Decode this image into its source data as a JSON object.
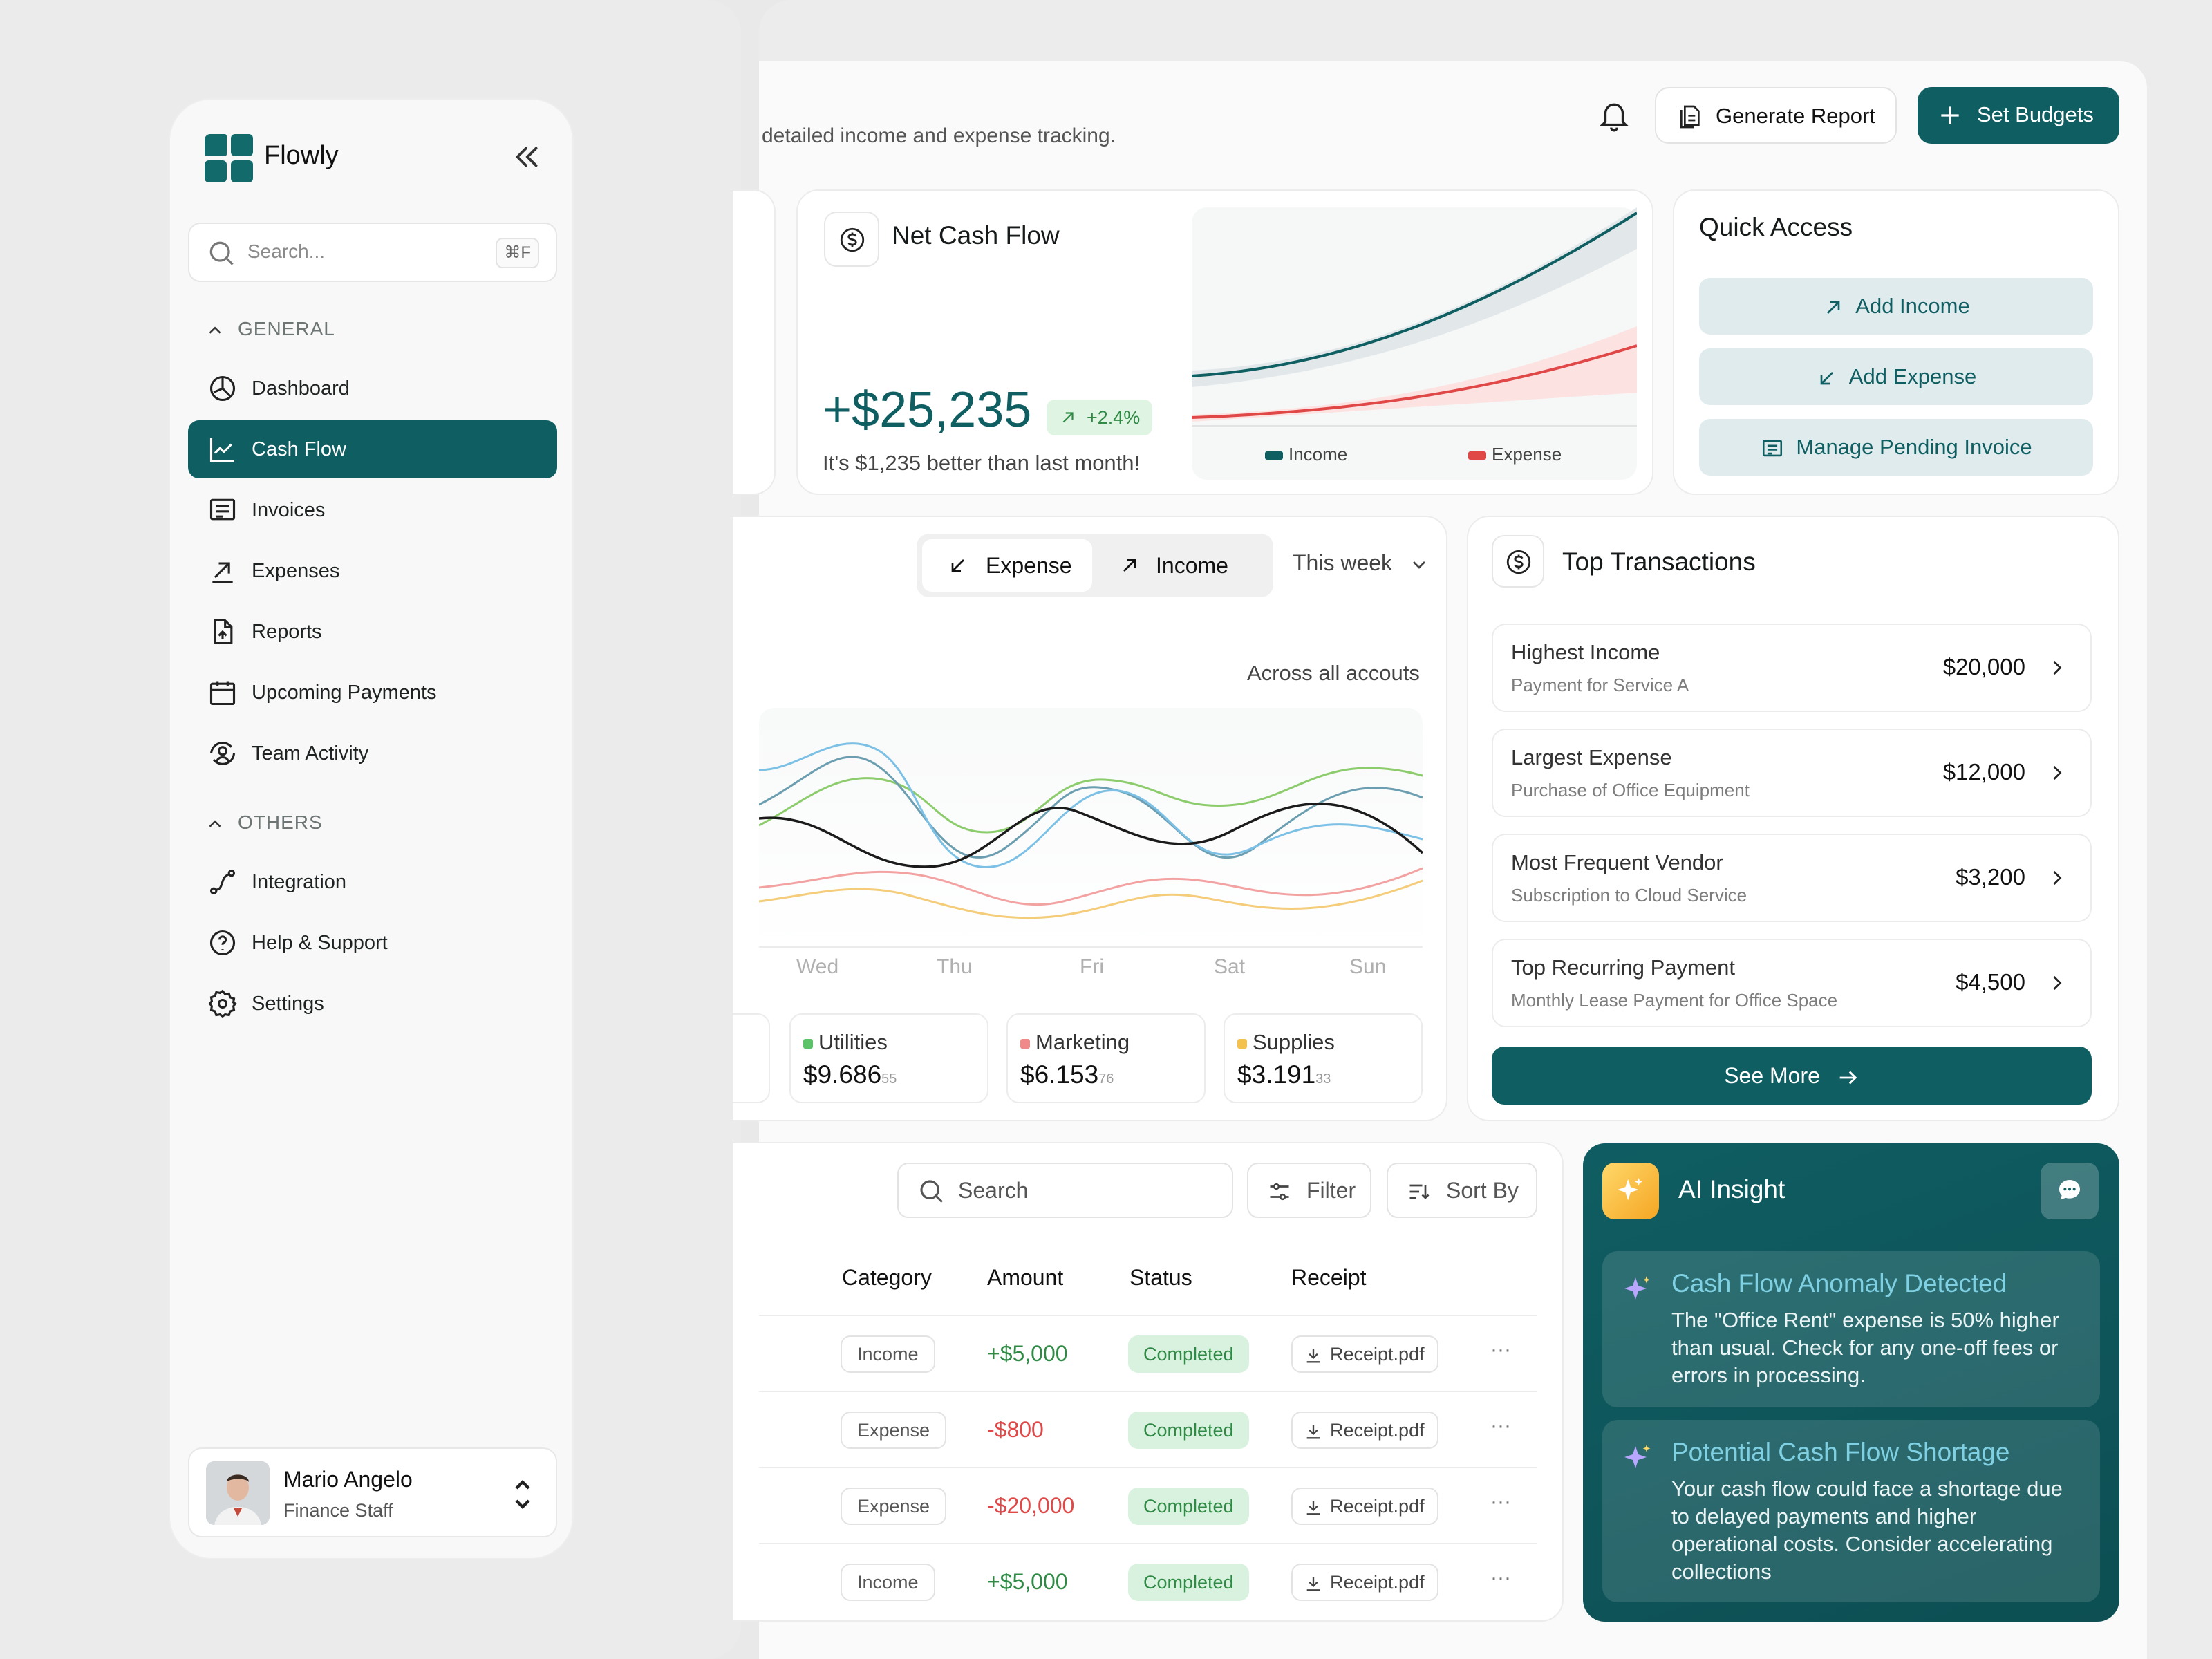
{
  "app": {
    "name": "Flowly"
  },
  "search": {
    "placeholder": "Search...",
    "shortcut": "⌘F"
  },
  "sidebar": {
    "general_label": "GENERAL",
    "others_label": "OTHERS",
    "items": [
      {
        "label": "Dashboard",
        "icon": "dashboard-icon"
      },
      {
        "label": "Cash Flow",
        "icon": "chart-line-icon",
        "active": true
      },
      {
        "label": "Invoices",
        "icon": "invoice-icon"
      },
      {
        "label": "Expenses",
        "icon": "arrow-up-right-icon"
      },
      {
        "label": "Reports",
        "icon": "report-icon"
      },
      {
        "label": "Upcoming Payments",
        "icon": "calendar-icon"
      },
      {
        "label": "Team Activity",
        "icon": "team-icon"
      }
    ],
    "others": [
      {
        "label": "Integration",
        "icon": "integration-icon"
      },
      {
        "label": "Help & Support",
        "icon": "help-icon"
      },
      {
        "label": "Settings",
        "icon": "gear-icon"
      }
    ]
  },
  "user": {
    "name": "Mario Angelo",
    "role": "Finance Staff"
  },
  "header": {
    "subtitle": "detailed income and expense tracking.",
    "generate_report": "Generate Report",
    "set_budgets": "Set Budgets"
  },
  "net_cash_flow": {
    "title": "Net Cash Flow",
    "value": "+$25,235",
    "change": "+2.4%",
    "note": "It's $1,235 better than last month!",
    "legend_income": "Income",
    "legend_expense": "Expense"
  },
  "quick_access": {
    "title": "Quick Access",
    "add_income": "Add Income",
    "add_expense": "Add Expense",
    "manage_invoice": "Manage Pending Invoice"
  },
  "trend": {
    "tab_expense": "Expense",
    "tab_income": "Income",
    "period": "This week",
    "caption": "Across all accouts",
    "days": [
      "Wed",
      "Thu",
      "Fri",
      "Sat",
      "Sun"
    ],
    "metrics": [
      {
        "name": "Utilities",
        "value": "$9.686",
        "cents": "55",
        "color": "#5cc36a"
      },
      {
        "name": "Marketing",
        "value": "$6.153",
        "cents": "76",
        "color": "#f08a8a"
      },
      {
        "name": "Supplies",
        "value": "$3.191",
        "cents": "33",
        "color": "#f2c14e"
      }
    ]
  },
  "top_transactions": {
    "title": "Top Transactions",
    "items": [
      {
        "title": "Highest Income",
        "sub": "Payment for Service A",
        "amount": "$20,000"
      },
      {
        "title": "Largest Expense",
        "sub": "Purchase of Office Equipment",
        "amount": "$12,000"
      },
      {
        "title": "Most Frequent Vendor",
        "sub": "Subscription to Cloud Service",
        "amount": "$3,200"
      },
      {
        "title": "Top Recurring Payment",
        "sub": "Monthly Lease Payment for Office Space",
        "amount": "$4,500"
      }
    ],
    "see_more": "See More"
  },
  "table": {
    "search_placeholder": "Search",
    "filter": "Filter",
    "sort": "Sort By",
    "headers": {
      "category": "Category",
      "amount": "Amount",
      "status": "Status",
      "receipt": "Receipt"
    },
    "rows": [
      {
        "category": "Income",
        "amount": "+$5,000",
        "status": "Completed",
        "receipt": "Receipt.pdf",
        "more": "···"
      },
      {
        "category": "Expense",
        "amount": "-$800",
        "status": "Completed",
        "receipt": "Receipt.pdf",
        "more": "···"
      },
      {
        "category": "Expense",
        "amount": "-$20,000",
        "status": "Completed",
        "receipt": "Receipt.pdf",
        "more": "···"
      },
      {
        "category": "Income",
        "amount": "+$5,000",
        "status": "Completed",
        "receipt": "Receipt.pdf",
        "more": "···"
      }
    ]
  },
  "ai": {
    "title": "AI Insight",
    "insights": [
      {
        "heading": "Cash Flow Anomaly Detected",
        "body": "The \"Office Rent\" expense is 50% higher than usual. Check for any one-off fees or errors in processing."
      },
      {
        "heading": "Potential Cash Flow Shortage",
        "body": "Your cash flow could face a shortage due to delayed payments and higher operational costs. Consider accelerating collections"
      }
    ]
  },
  "colors": {
    "brand": "#0f5e62",
    "positive": "#2f8a45",
    "negative": "#e04848"
  }
}
